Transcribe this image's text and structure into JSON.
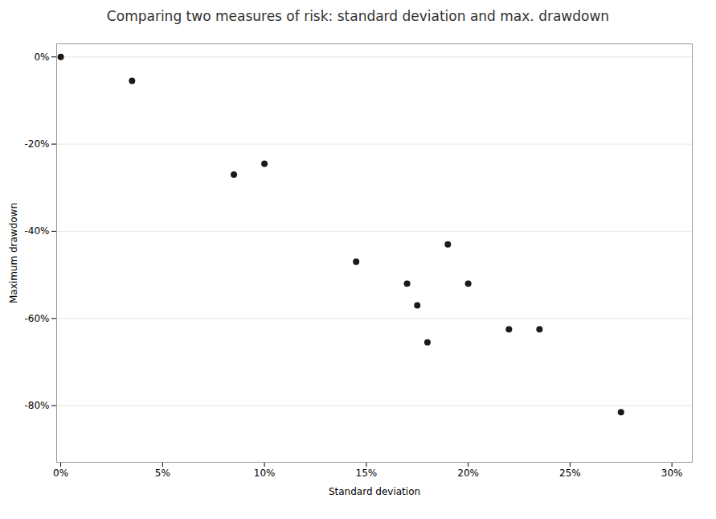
{
  "chart_data": {
    "type": "scatter",
    "title": "Comparing two measures of risk: standard deviation and max. drawdown",
    "xlabel": "Standard deviation",
    "ylabel": "Maximum drawdown",
    "x": [
      0.0,
      0.035,
      0.085,
      0.1,
      0.145,
      0.17,
      0.175,
      0.18,
      0.19,
      0.2,
      0.22,
      0.235,
      0.275
    ],
    "values": [
      0.0,
      -0.055,
      -0.27,
      -0.245,
      -0.47,
      -0.52,
      -0.57,
      -0.655,
      -0.43,
      -0.52,
      -0.625,
      -0.625,
      -0.815
    ],
    "color": "#1a1a1a",
    "xlim": [
      -0.002,
      0.31
    ],
    "ylim": [
      -0.93,
      0.03
    ],
    "xticks": [
      {
        "value": 0.0,
        "label": "0%"
      },
      {
        "value": 0.05,
        "label": "5%"
      },
      {
        "value": 0.1,
        "label": "10%"
      },
      {
        "value": 0.15,
        "label": "15%"
      },
      {
        "value": 0.2,
        "label": "20%"
      },
      {
        "value": 0.25,
        "label": "25%"
      },
      {
        "value": 0.3,
        "label": "30%"
      }
    ],
    "yticks": [
      {
        "value": 0.0,
        "label": "0%"
      },
      {
        "value": -0.2,
        "label": "-20%"
      },
      {
        "value": -0.4,
        "label": "-40%"
      },
      {
        "value": -0.6,
        "label": "-60%"
      },
      {
        "value": -0.8,
        "label": "-80%"
      }
    ],
    "grid": "y"
  }
}
